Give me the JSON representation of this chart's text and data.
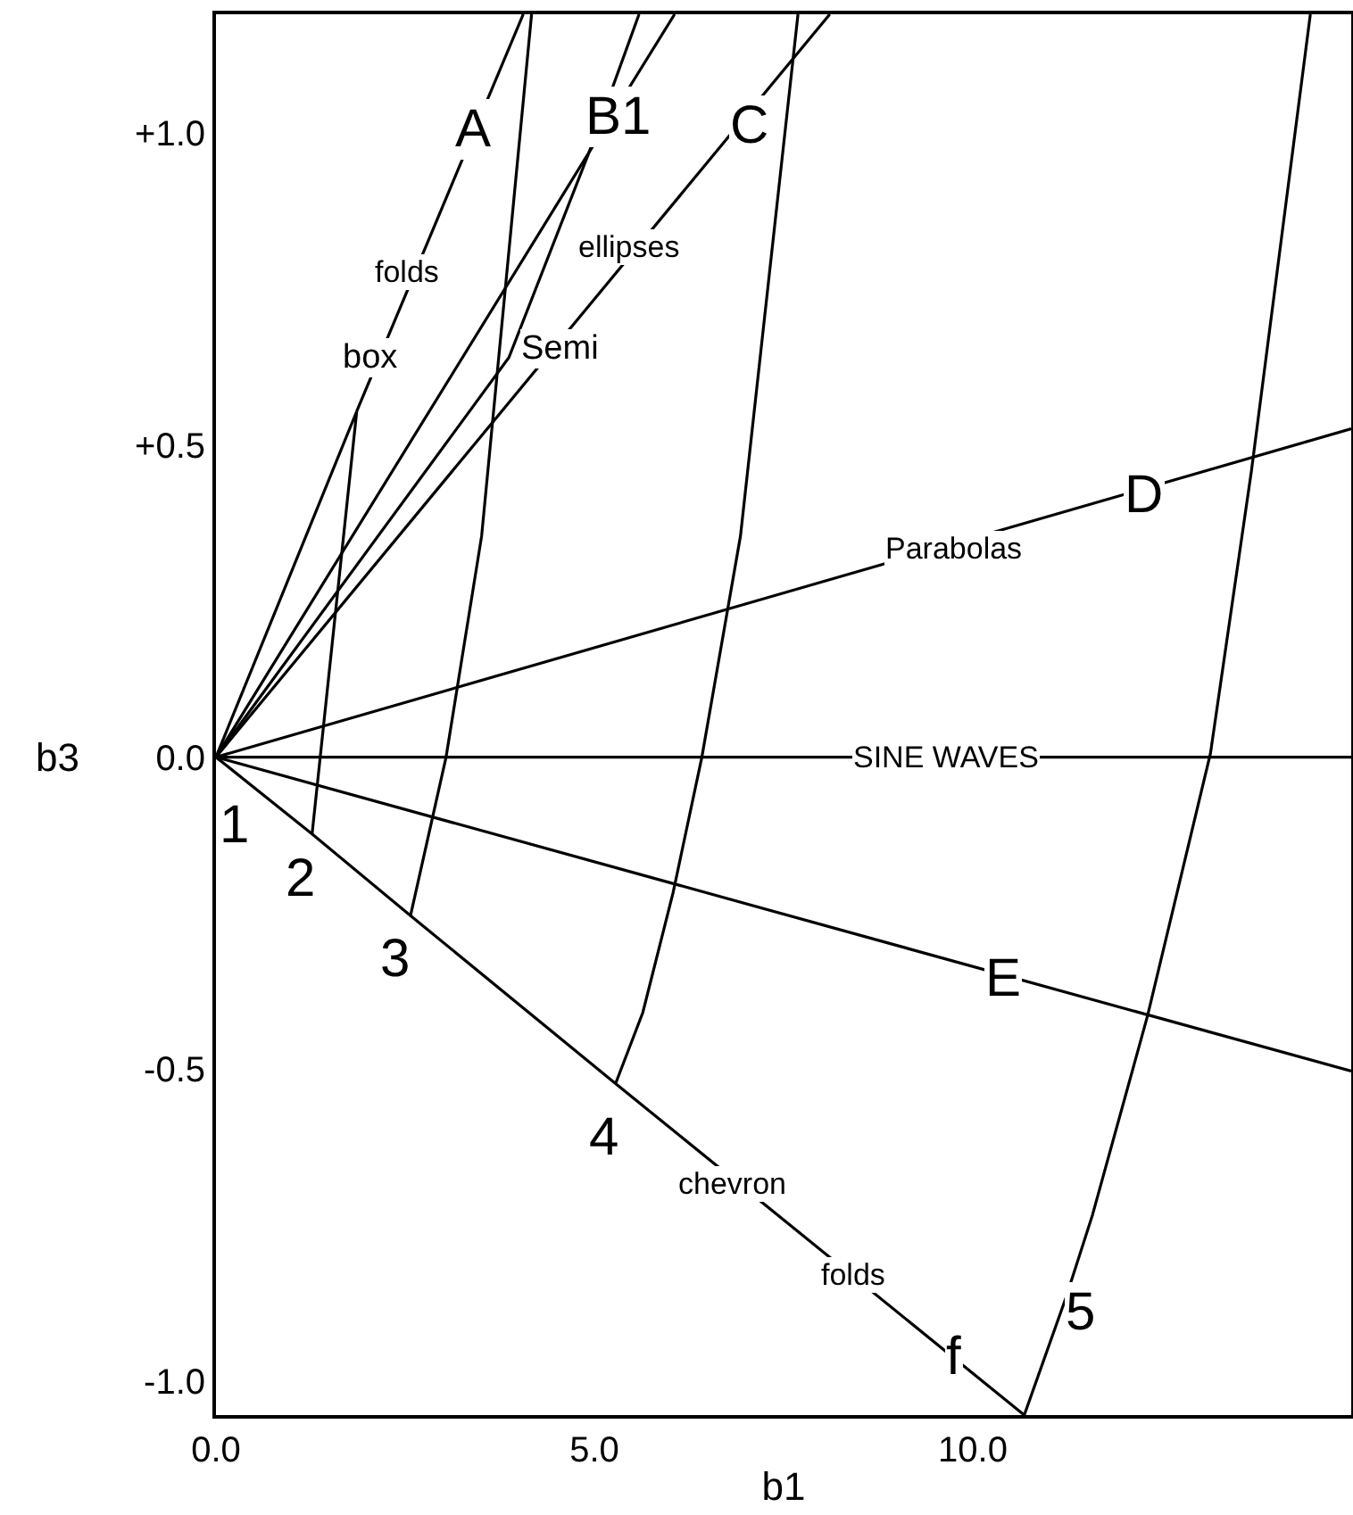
{
  "chart_data": {
    "type": "line",
    "xlabel": "b1",
    "ylabel": "b3",
    "xlim": [
      0,
      15
    ],
    "ylim": [
      -1.054,
      1.19
    ],
    "xticks": [
      {
        "value": 0,
        "label": "0.0"
      },
      {
        "value": 5,
        "label": "5.0"
      },
      {
        "value": 10,
        "label": "10.0"
      }
    ],
    "yticks": [
      {
        "value": 1,
        "label": "+1.0"
      },
      {
        "value": 0.5,
        "label": "+0.5"
      },
      {
        "value": 0,
        "label": "0.0"
      },
      {
        "value": -0.5,
        "label": "-0.5"
      },
      {
        "value": -1,
        "label": "-1.0"
      }
    ],
    "grid": false,
    "marker": "none",
    "line_style": "solid",
    "series": [
      {
        "color": "#000000",
        "x": [
          0,
          1.86,
          1.27
        ],
        "values": [
          0,
          0.554,
          -0.123
        ]
      },
      {
        "color": "#000000",
        "x": [
          1.86,
          4.06
        ],
        "values": [
          0.554,
          1.19
        ]
      },
      {
        "color": "#000000",
        "x": [
          0,
          4.93,
          5.59
        ],
        "values": [
          0,
          0.969,
          1.19
        ]
      },
      {
        "color": "#000000",
        "x": [
          0,
          3.87,
          4.93,
          6.06
        ],
        "values": [
          0,
          0.64,
          0.969,
          1.19
        ]
      },
      {
        "color": "#000000",
        "x": [
          0,
          8.11
        ],
        "values": [
          0,
          1.19
        ]
      },
      {
        "color": "#000000",
        "x": [
          0,
          15
        ],
        "values": [
          0,
          0.526
        ]
      },
      {
        "color": "#000000",
        "x": [
          0,
          15
        ],
        "values": [
          0,
          0
        ]
      },
      {
        "color": "#000000",
        "x": [
          0,
          15
        ],
        "values": [
          0,
          -0.503
        ]
      },
      {
        "color": "#000000",
        "x": [
          0,
          1.27,
          2.57,
          5.28,
          10.68
        ],
        "values": [
          0,
          -0.123,
          -0.254,
          -0.523,
          -1.054
        ]
      },
      {
        "color": "#000000",
        "x": [
          2.57,
          3.04,
          3.51,
          4.17
        ],
        "values": [
          -0.254,
          0,
          0.354,
          1.19
        ]
      },
      {
        "color": "#000000",
        "x": [
          5.28,
          5.64,
          6.04,
          6.42,
          6.93,
          7.69
        ],
        "values": [
          -0.523,
          -0.409,
          -0.217,
          0,
          0.354,
          1.19
        ]
      },
      {
        "color": "#000000",
        "x": [
          10.68,
          11.23,
          11.58,
          12.31,
          13.14,
          13.68,
          14.46
        ],
        "values": [
          -1.054,
          -0.866,
          -0.734,
          -0.414,
          0.006,
          0.457,
          1.19
        ]
      }
    ],
    "annotations": [
      {
        "text": "1",
        "x": 0.24,
        "y": -0.109
      },
      {
        "text": "2",
        "x": 1.11,
        "y": -0.194
      },
      {
        "text": "3",
        "x": 2.38,
        "y": -0.323
      },
      {
        "text": "4",
        "x": 5.14,
        "y": -0.609
      },
      {
        "text": "5",
        "x": 11.42,
        "y": -0.889
      },
      {
        "text": "A",
        "x": 3.4,
        "y": 1.006
      },
      {
        "text": "B1",
        "x": 5.33,
        "y": 1.026
      },
      {
        "text": "C",
        "x": 7.05,
        "y": 1.011
      },
      {
        "text": "D",
        "x": 12.26,
        "y": 0.42
      },
      {
        "text": "E",
        "x": 10.4,
        "y": -0.354
      },
      {
        "text": "f",
        "x": 9.76,
        "y": -0.96
      },
      {
        "text": "box",
        "x": 2.03,
        "y": 0.64
      },
      {
        "text": "folds",
        "x": 2.52,
        "y": 0.777
      },
      {
        "text": "Semi",
        "x": 4.53,
        "y": 0.654
      },
      {
        "text": "ellipses",
        "x": 5.45,
        "y": 0.817
      },
      {
        "text": "Parabolas",
        "x": 9.76,
        "y": 0.334
      },
      {
        "text": "SINE WAVES",
        "x": 9.65,
        "y": 0
      },
      {
        "text": "chevron",
        "x": 6.82,
        "y": -0.683
      },
      {
        "text": "folds",
        "x": 8.42,
        "y": -0.829
      }
    ]
  }
}
